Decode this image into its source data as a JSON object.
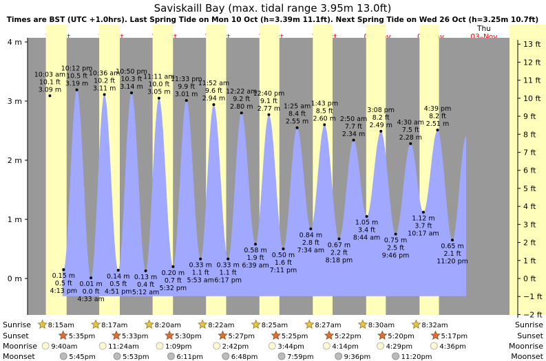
{
  "chart_data": {
    "type": "area",
    "title": "Saviskaill Bay (max. tidal range 3.95m 13.0ft)",
    "subtitle": "Times are BST (UTC +1.0hrs). Last Spring Tide on Mon 10 Oct (h=3.39m 11.1ft). Next Spring Tide on Wed 26 Oct (h=3.25m 10.7ft)",
    "days": [
      {
        "dow": "Wed",
        "date": "26–Oct"
      },
      {
        "dow": "Thu",
        "date": "27–Oct"
      },
      {
        "dow": "Fri",
        "date": "28–Oct"
      },
      {
        "dow": "Sat",
        "date": "29–Oct"
      },
      {
        "dow": "Sun",
        "date": "30–Oct"
      },
      {
        "dow": "Mon",
        "date": "31–Oct"
      },
      {
        "dow": "Tue",
        "date": "01–Nov"
      },
      {
        "dow": "Wed",
        "date": "02–Nov"
      },
      {
        "dow": "Thu",
        "date": "03–Nov"
      }
    ],
    "y_left": {
      "unit": "m",
      "ylim": [
        -0.55,
        4.0
      ],
      "ticks": [
        "4 m",
        "3 m",
        "2 m",
        "1 m",
        "0 m"
      ]
    },
    "y_right": {
      "unit": "ft",
      "ticks": [
        "13 ft",
        "12 ft",
        "11 ft",
        "10 ft",
        "9 ft",
        "8 ft",
        "7 ft",
        "6 ft",
        "5 ft",
        "4 ft",
        "3 ft",
        "2 ft",
        "1 ft",
        "0 ft",
        "−1 ft",
        "−2 ft"
      ]
    },
    "tides": [
      {
        "time": "10:03 am",
        "m": 3.09,
        "ft": "10.1 ft",
        "h": "3.09 m",
        "type": "high",
        "t": 0.419
      },
      {
        "time": "4:13 pm",
        "m": 0.15,
        "ft": "0.5 ft",
        "h": "0.15 m",
        "type": "low",
        "t": 0.676
      },
      {
        "time": "10:12 pm",
        "m": 3.19,
        "ft": "10.5 ft",
        "h": "3.19 m",
        "type": "high",
        "t": 0.925
      },
      {
        "time": "4:33 am",
        "m": 0.01,
        "ft": "0.0 ft",
        "h": "0.01 m",
        "type": "low",
        "t": 1.19
      },
      {
        "time": "10:36 am",
        "m": 3.11,
        "ft": "10.2 ft",
        "h": "3.11 m",
        "type": "high",
        "t": 1.442
      },
      {
        "time": "4:51 pm",
        "m": 0.14,
        "ft": "0.5 ft",
        "h": "0.14 m",
        "type": "low",
        "t": 1.702
      },
      {
        "time": "10:50 pm",
        "m": 3.14,
        "ft": "10.3 ft",
        "h": "3.14 m",
        "type": "high",
        "t": 1.951
      },
      {
        "time": "5:12 am",
        "m": 0.13,
        "ft": "0.4 ft",
        "h": "0.13 m",
        "type": "low",
        "t": 2.217
      },
      {
        "time": "11:11 am",
        "m": 3.05,
        "ft": "10.0 ft",
        "h": "3.05 m",
        "type": "high",
        "t": 2.466
      },
      {
        "time": "5:32 pm",
        "m": 0.2,
        "ft": "0.7 ft",
        "h": "0.20 m",
        "type": "low",
        "t": 2.731
      },
      {
        "time": "11:33 pm",
        "m": 3.01,
        "ft": "9.9 ft",
        "h": "3.01 m",
        "type": "high",
        "t": 2.981
      },
      {
        "time": "5:53 am",
        "m": 0.33,
        "ft": "1.1 ft",
        "h": "0.33 m",
        "type": "low",
        "t": 3.245
      },
      {
        "time": "11:52 am",
        "m": 2.94,
        "ft": "9.6 ft",
        "h": "2.94 m",
        "type": "high",
        "t": 3.494
      },
      {
        "time": "6:17 pm",
        "m": 0.33,
        "ft": "1.1 ft",
        "h": "0.33 m",
        "type": "low",
        "t": 3.762
      },
      {
        "time": "12:22 am",
        "m": 2.8,
        "ft": "9.2 ft",
        "h": "2.80 m",
        "type": "high",
        "t": 4.015
      },
      {
        "time": "6:39 am",
        "m": 0.58,
        "ft": "1.9 ft",
        "h": "0.58 m",
        "type": "low",
        "t": 4.277
      },
      {
        "time": "12:40 pm",
        "m": 2.77,
        "ft": "9.1 ft",
        "h": "2.77 m",
        "type": "high",
        "t": 4.528
      },
      {
        "time": "7:11 pm",
        "m": 0.5,
        "ft": "1.6 ft",
        "h": "0.50 m",
        "type": "low",
        "t": 4.799
      },
      {
        "time": "1:25 am",
        "m": 2.55,
        "ft": "8.4 ft",
        "h": "2.55 m",
        "type": "high",
        "t": 5.059
      },
      {
        "time": "7:34 am",
        "m": 0.84,
        "ft": "2.8 ft",
        "h": "0.84 m",
        "type": "low",
        "t": 5.315
      },
      {
        "time": "1:43 pm",
        "m": 2.6,
        "ft": "8.5 ft",
        "h": "2.60 m",
        "type": "high",
        "t": 5.572
      },
      {
        "time": "8:18 pm",
        "m": 0.67,
        "ft": "2.2 ft",
        "h": "0.67 m",
        "type": "low",
        "t": 5.846
      },
      {
        "time": "2:50 am",
        "m": 2.34,
        "ft": "7.7 ft",
        "h": "2.34 m",
        "type": "high",
        "t": 6.118
      },
      {
        "time": "8:44 am",
        "m": 1.05,
        "ft": "3.4 ft",
        "h": "1.05 m",
        "type": "low",
        "t": 6.364
      },
      {
        "time": "3:08 pm",
        "m": 2.49,
        "ft": "8.2 ft",
        "h": "2.49 m",
        "type": "high",
        "t": 6.631
      },
      {
        "time": "9:46 pm",
        "m": 0.75,
        "ft": "2.5 ft",
        "h": "0.75 m",
        "type": "low",
        "t": 6.907
      },
      {
        "time": "4:30 am",
        "m": 2.28,
        "ft": "7.5 ft",
        "h": "2.28 m",
        "type": "high",
        "t": 7.188
      },
      {
        "time": "10:17 am",
        "m": 1.12,
        "ft": "3.7 ft",
        "h": "1.12 m",
        "type": "low",
        "t": 7.428
      },
      {
        "time": "4:39 pm",
        "m": 2.51,
        "ft": "8.2 ft",
        "h": "2.51 m",
        "type": "high",
        "t": 7.694
      },
      {
        "time": "11:20 pm",
        "m": 0.65,
        "ft": "2.1 ft",
        "h": "0.65 m",
        "type": "low",
        "t": 7.972
      }
    ],
    "rows": [
      {
        "name": "Sunrise",
        "icon": "sunrise-icon",
        "items": [
          {
            "t": 0.344,
            "time": "8:15am"
          },
          {
            "t": 1.345,
            "time": "8:17am"
          },
          {
            "t": 2.347,
            "time": "8:20am"
          },
          {
            "t": 3.349,
            "time": "8:22am"
          },
          {
            "t": 4.351,
            "time": "8:25am"
          },
          {
            "t": 5.353,
            "time": "8:27am"
          },
          {
            "t": 6.354,
            "time": "8:30am"
          },
          {
            "t": 7.356,
            "time": "8:32am"
          }
        ]
      },
      {
        "name": "Sunset",
        "icon": "sunset-icon",
        "items": [
          {
            "t": 0.733,
            "time": "5:35pm"
          },
          {
            "t": 1.731,
            "time": "5:33pm"
          },
          {
            "t": 2.729,
            "time": "5:30pm"
          },
          {
            "t": 3.727,
            "time": "5:27pm"
          },
          {
            "t": 4.726,
            "time": "5:25pm"
          },
          {
            "t": 5.724,
            "time": "5:22pm"
          },
          {
            "t": 6.722,
            "time": "5:20pm"
          },
          {
            "t": 7.72,
            "time": "5:17pm"
          }
        ]
      },
      {
        "name": "Moonrise",
        "icon": "moonrise-icon",
        "items": [
          {
            "t": 0.403,
            "time": "9:40am"
          },
          {
            "t": 1.475,
            "time": "11:24am"
          },
          {
            "t": 2.545,
            "time": "1:09pm"
          },
          {
            "t": 3.613,
            "time": "2:42pm"
          },
          {
            "t": 4.656,
            "time": "3:44pm"
          },
          {
            "t": 5.676,
            "time": "4:14pm"
          },
          {
            "t": 6.687,
            "time": "4:29pm"
          },
          {
            "t": 7.692,
            "time": "4:36pm"
          }
        ]
      },
      {
        "name": "Moonset",
        "icon": "moonset-icon",
        "items": [
          {
            "t": 0.74,
            "time": "5:45pm"
          },
          {
            "t": 1.745,
            "time": "5:53pm"
          },
          {
            "t": 2.758,
            "time": "6:11pm"
          },
          {
            "t": 3.783,
            "time": "6:48pm"
          },
          {
            "t": 4.833,
            "time": "7:59pm"
          },
          {
            "t": 5.9,
            "time": "9:36pm"
          },
          {
            "t": 6.972,
            "time": "11:20pm"
          }
        ]
      }
    ],
    "colors": {
      "night": "#999999",
      "day": "#ffffbb",
      "water": "#a0a8ff",
      "title": "#000000",
      "date": "#ff0000",
      "text": "#000000"
    }
  }
}
